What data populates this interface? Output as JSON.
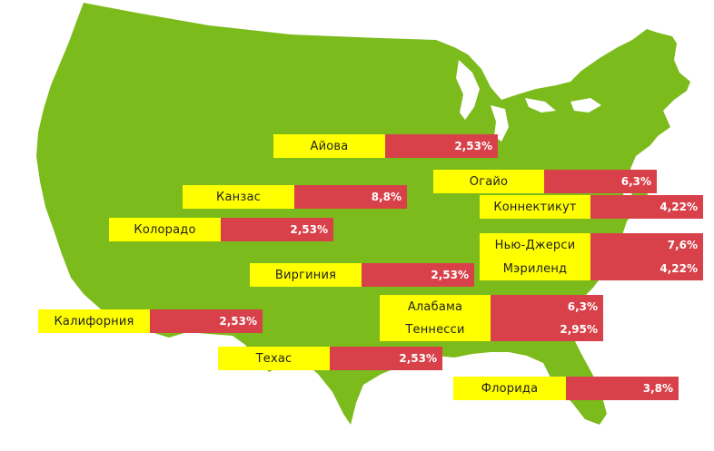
{
  "map": {
    "fill_color": "#7cbb1c",
    "name_bg_color": "#ffff00",
    "value_bg_color": "#d8414a"
  },
  "states": [
    {
      "name": "Айова",
      "value": "2,53%"
    },
    {
      "name": "Огайо",
      "value": "6,3%"
    },
    {
      "name": "Канзас",
      "value": "8,8%"
    },
    {
      "name": "Коннектикут",
      "value": "4,22%"
    },
    {
      "name": "Колорадо",
      "value": "2,53%"
    },
    {
      "name": "Нью-Джерси",
      "value": "7,6%"
    },
    {
      "name": "Мэриленд",
      "value": "4,22%"
    },
    {
      "name": "Виргиния",
      "value": "2,53%"
    },
    {
      "name": "Алабама",
      "value": "6,3%"
    },
    {
      "name": "Калифорния",
      "value": "2,53%"
    },
    {
      "name": "Теннесси",
      "value": "2,95%"
    },
    {
      "name": "Техас",
      "value": "2,53%"
    },
    {
      "name": "Флорида",
      "value": "3,8%"
    }
  ]
}
